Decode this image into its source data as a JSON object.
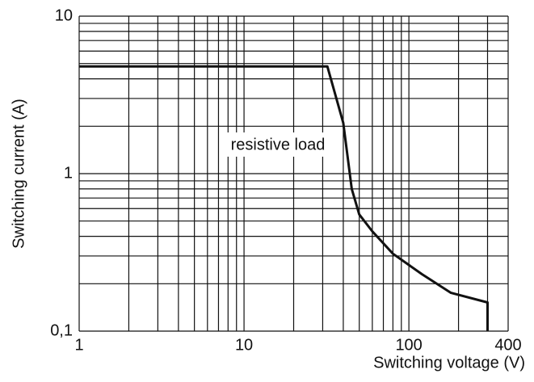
{
  "chart_data": {
    "type": "line",
    "xlabel": "Switching voltage (V)",
    "ylabel": "Switching current (A)",
    "annotation": "resistive load",
    "x": [
      1,
      32,
      40,
      45,
      50,
      60,
      80,
      120,
      180,
      300,
      300
    ],
    "values": [
      4.8,
      4.8,
      2.1,
      0.8,
      0.55,
      0.43,
      0.31,
      0.23,
      0.175,
      0.152,
      0.1
    ],
    "color": "#111111",
    "xlim": [
      1,
      400
    ],
    "ylim": [
      0.1,
      10
    ],
    "xticks": [
      1,
      10,
      100,
      400
    ],
    "yticks": [
      {
        "value": 0.1,
        "label": "0,1"
      },
      1,
      10
    ],
    "xscale": "log",
    "yscale": "log",
    "grid": true
  }
}
